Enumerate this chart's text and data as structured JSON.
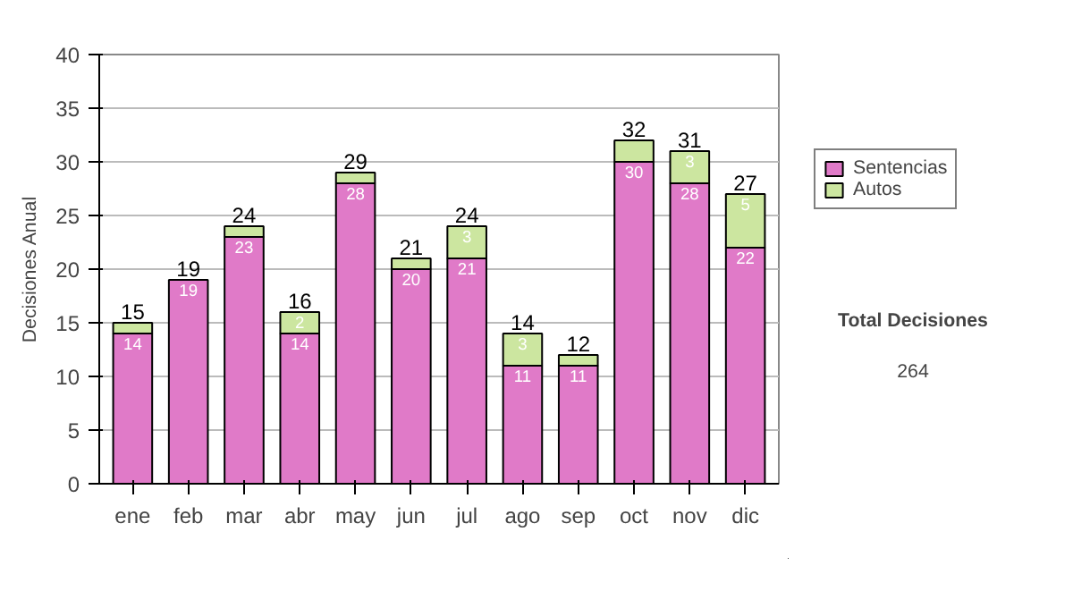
{
  "chart_data": {
    "type": "bar",
    "stacked": true,
    "ylabel": "Decisiones Anual",
    "categories": [
      "ene",
      "feb",
      "mar",
      "abr",
      "may",
      "jun",
      "jul",
      "ago",
      "sep",
      "oct",
      "nov",
      "dic"
    ],
    "series": [
      {
        "name": "Sentencias",
        "color": "#e07ac8",
        "values": [
          14,
          19,
          23,
          14,
          28,
          20,
          21,
          11,
          11,
          30,
          28,
          22
        ],
        "value_labels": [
          "14",
          "19",
          "23",
          "14",
          "28",
          "20",
          "21",
          "11",
          "11",
          "30",
          "28",
          "22"
        ]
      },
      {
        "name": "Autos",
        "color": "#cce6a0",
        "values": [
          1,
          0,
          1,
          2,
          1,
          1,
          3,
          3,
          1,
          2,
          3,
          5
        ],
        "value_labels": [
          null,
          null,
          null,
          "2",
          null,
          null,
          "3",
          "3",
          null,
          null,
          "3",
          "5"
        ]
      }
    ],
    "totals": [
      "15",
      "19",
      "24",
      "16",
      "29",
      "21",
      "24",
      "14",
      "12",
      "32",
      "31",
      "27"
    ],
    "ylim": [
      0,
      40
    ],
    "yticks": [
      0,
      5,
      10,
      15,
      20,
      25,
      30,
      35,
      40
    ],
    "grid": "y",
    "legend": "right",
    "annotations": [
      "Total Decisiones",
      "264"
    ]
  }
}
